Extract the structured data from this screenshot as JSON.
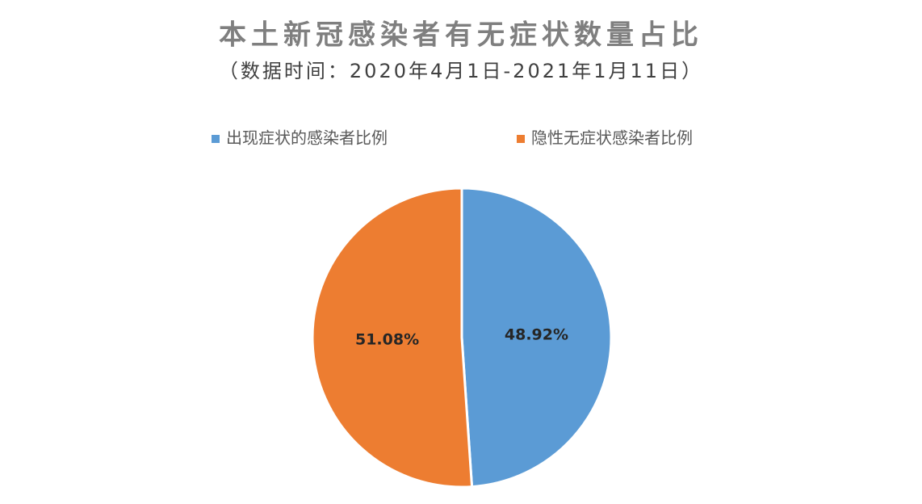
{
  "chart_data": {
    "type": "pie",
    "title": "本土新冠感染者有无症状数量占比",
    "subtitle": "（数据时间：2020年4月1日-2021年1月11日）",
    "series": [
      {
        "name": "出现症状的感染者比例",
        "color": "#5b9bd5"
      },
      {
        "name": "隐性无症状感染者比例",
        "color": "#ed7d31"
      }
    ],
    "values": [
      48.92,
      51.08
    ],
    "value_labels": [
      "48.92%",
      "51.08%"
    ],
    "legend": "top"
  }
}
